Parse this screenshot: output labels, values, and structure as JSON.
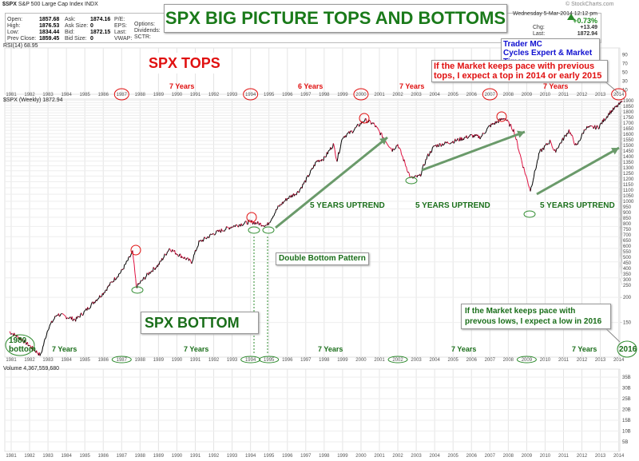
{
  "header": {
    "symbol": "$SPX",
    "name": "S&P 500 Large Cap Index",
    "exchange": "INDX",
    "brand": "© StockCharts.com",
    "quote": [
      [
        "Open:",
        "1857.68"
      ],
      [
        "High:",
        "1876.53"
      ],
      [
        "Low:",
        "1834.44"
      ],
      [
        "Prev Close:",
        "1859.45"
      ]
    ],
    "book": [
      [
        "Ask:",
        "1874.16"
      ],
      [
        "Ask Size:",
        "0"
      ],
      [
        "Bid:",
        "1872.15"
      ],
      [
        "Bid Size:",
        "0"
      ]
    ],
    "fund": [
      "P/E:",
      "EPS:",
      "Last:",
      "VWAP:"
    ],
    "fund2": [
      "Options:",
      "Dividends:",
      "SCTR:"
    ],
    "date": "Wednesday  5-Mar-2014  12:12 pm",
    "pct": "+0.73%",
    "chg_label": "Chg:",
    "chg": "+13.49",
    "last_label": "Last:",
    "last": "1872.94"
  },
  "rsi_label": "RSI(14) 68.95",
  "price_label": "$SPX (Weekly) 1872.94",
  "volume_label": "Volume 4,367,559,680",
  "annotations": {
    "title": "SPX BIG PICTURE TOPS AND BOTTOMS",
    "tops": "SPX TOPS",
    "bottom": "SPX BOTTOM",
    "trader1": "Trader MC",
    "trader2": "Cycles Expert & Market Timer",
    "top_note": "If the Market keeps pace with previous tops, I expect a top in 2014 or early 2015",
    "low_note": "If the Market keeps pace with prevous lows, I expect a low in 2016",
    "top_cycles": [
      "7 Years",
      "6 Years",
      "7 Years",
      "7 Years"
    ],
    "bottom_cycles": [
      "7 Years",
      "7 Years",
      "7 Years",
      "7 Years",
      "7 Years"
    ],
    "uptrend": "5 YEARS UPTREND",
    "double_bottom": "Double Bottom Pattern",
    "bottom_1980": "1980 bottom",
    "circle_2016": "2016"
  },
  "colors": {
    "up": "#000000",
    "down": "#e01040",
    "tops": "#e01010",
    "bottoms": "#2e8b2e",
    "arrow": "#6a9a6a"
  },
  "chart_data": {
    "type": "line",
    "scale": "log",
    "grid": true,
    "years": [
      1981,
      1982,
      1983,
      1984,
      1985,
      1986,
      1987,
      1988,
      1989,
      1990,
      1991,
      1992,
      1993,
      1994,
      1995,
      1996,
      1997,
      1998,
      1999,
      2000,
      2001,
      2002,
      2003,
      2004,
      2005,
      2006,
      2007,
      2008,
      2009,
      2010,
      2011,
      2012,
      2013,
      2014
    ],
    "price_ticks": [
      150,
      200,
      250,
      300,
      350,
      400,
      450,
      500,
      550,
      600,
      650,
      700,
      750,
      800,
      850,
      900,
      950,
      1000,
      1050,
      1100,
      1150,
      1200,
      1250,
      1300,
      1350,
      1400,
      1450,
      1500,
      1550,
      1600,
      1650,
      1700,
      1750,
      1800,
      1850,
      1900
    ],
    "rsi_ticks": [
      10,
      30,
      50,
      70,
      90
    ],
    "volume_ticks": [
      "5B",
      "10B",
      "15B",
      "20B",
      "25B",
      "30B",
      "35B"
    ],
    "x": [
      1980.9,
      1981.5,
      1982.0,
      1982.6,
      1983.0,
      1983.5,
      1984.0,
      1984.5,
      1985.0,
      1985.5,
      1986.0,
      1986.5,
      1987.0,
      1987.6,
      1987.8,
      1988.5,
      1989.0,
      1989.6,
      1990.0,
      1990.8,
      1991.2,
      1992.0,
      1993.0,
      1994.0,
      1994.9,
      1995.5,
      1996.0,
      1996.6,
      1997.0,
      1997.6,
      1998.0,
      1998.5,
      1998.7,
      1999.0,
      1999.5,
      2000.2,
      2000.7,
      2001.2,
      2001.7,
      2002.0,
      2002.7,
      2003.2,
      2003.6,
      2004.0,
      2005.0,
      2006.0,
      2006.5,
      2007.0,
      2007.8,
      2008.3,
      2008.8,
      2009.2,
      2009.7,
      2010.3,
      2010.5,
      2011.3,
      2011.7,
      2012.2,
      2012.9,
      2013.5,
      2014.2
    ],
    "y": [
      135,
      125,
      115,
      103,
      140,
      165,
      160,
      155,
      170,
      190,
      210,
      240,
      270,
      335,
      225,
      265,
      290,
      350,
      330,
      300,
      375,
      415,
      450,
      475,
      455,
      560,
      620,
      670,
      760,
      950,
      980,
      1150,
      960,
      1250,
      1330,
      1520,
      1450,
      1250,
      1080,
      1150,
      780,
      800,
      1000,
      1130,
      1190,
      1270,
      1250,
      1420,
      1560,
      1350,
      900,
      680,
      1050,
      1200,
      1050,
      1350,
      1120,
      1390,
      1400,
      1650,
      1872
    ]
  }
}
